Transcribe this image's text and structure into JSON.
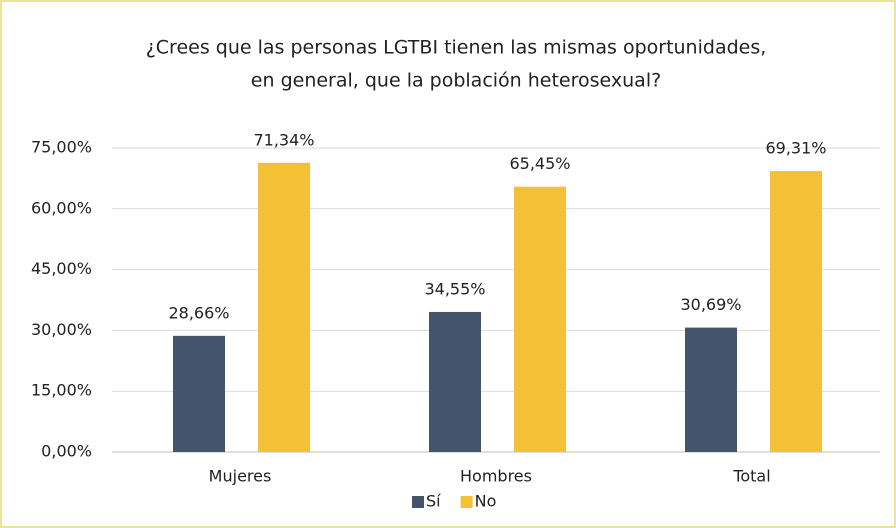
{
  "chart_data": {
    "type": "bar",
    "title": [
      "¿Crees que las personas LGTBI tienen las mismas oportunidades,",
      "en general, que la población heterosexual?"
    ],
    "categories": [
      "Mujeres",
      "Hombres",
      "Total"
    ],
    "series": [
      {
        "name": "Sí",
        "color": "#44546a",
        "values": [
          28.66,
          34.55,
          30.69
        ],
        "value_labels": [
          "28,66%",
          "34,55%",
          "30,69%"
        ]
      },
      {
        "name": "No",
        "color": "#f4c136",
        "values": [
          71.34,
          65.45,
          69.31
        ],
        "value_labels": [
          "71,34%",
          "65,45%",
          "69,31%"
        ]
      }
    ],
    "ylim": [
      0,
      75
    ],
    "yticks": [
      {
        "value": 0,
        "label": "0,00%"
      },
      {
        "value": 15,
        "label": "15,00%"
      },
      {
        "value": 30,
        "label": "30,00%"
      },
      {
        "value": 45,
        "label": "45,00%"
      },
      {
        "value": 60,
        "label": "60,00%"
      },
      {
        "value": 75,
        "label": "75,00%"
      }
    ],
    "grid": true,
    "legend": "bottom"
  }
}
